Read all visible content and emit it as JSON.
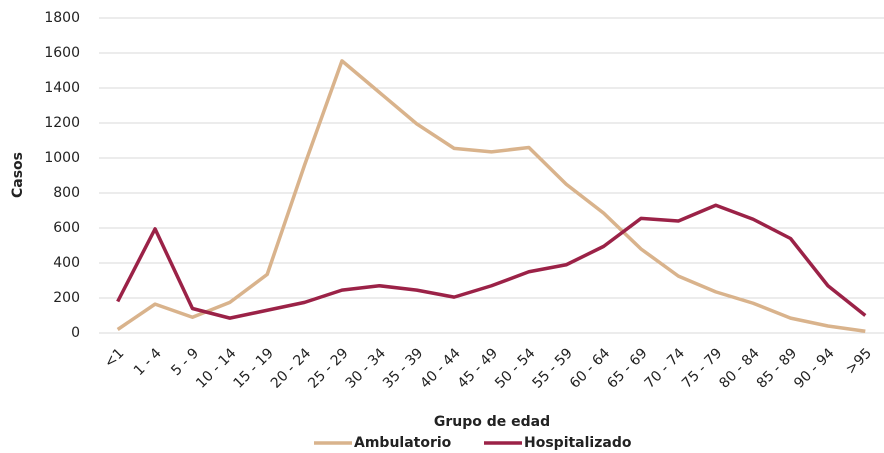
{
  "chart_data": {
    "type": "line",
    "x_label": "Grupo de edad",
    "y_label": "Casos",
    "categories": [
      "<1",
      "1 - 4",
      "5 - 9",
      "10 - 14",
      "15 - 19",
      "20 - 24",
      "25 - 29",
      "30 - 34",
      "35 - 39",
      "40 - 44",
      "45 - 49",
      "50 - 54",
      "55 - 59",
      "60 - 64",
      "65 - 69",
      "70 - 74",
      "75 - 79",
      "80 - 84",
      "85 - 89",
      "90 - 94",
      ">95"
    ],
    "series": [
      {
        "name": "Ambulatorio",
        "color": "#d9b38c",
        "values": [
          20,
          165,
          90,
          175,
          335,
          960,
          1555,
          1375,
          1195,
          1055,
          1035,
          1060,
          850,
          685,
          480,
          325,
          235,
          170,
          85,
          40,
          10
        ]
      },
      {
        "name": "Hospitalizado",
        "color": "#9b2247",
        "values": [
          180,
          595,
          140,
          85,
          130,
          175,
          245,
          270,
          245,
          205,
          270,
          350,
          390,
          495,
          655,
          640,
          730,
          650,
          540,
          270,
          100
        ]
      }
    ],
    "ylim": [
      0,
      1800
    ],
    "yticks": [
      0,
      200,
      400,
      600,
      800,
      1000,
      1200,
      1400,
      1600,
      1800
    ],
    "grid": true,
    "legend": "bottom"
  }
}
